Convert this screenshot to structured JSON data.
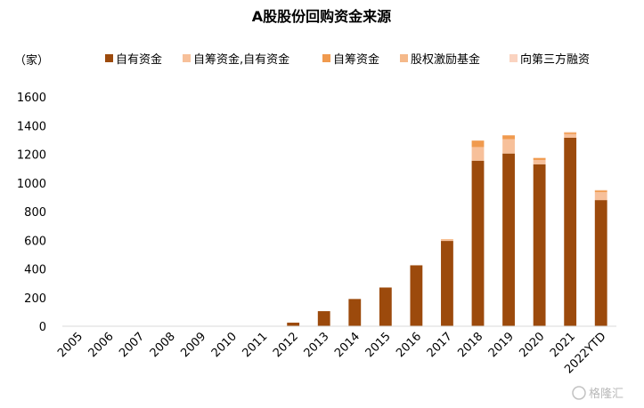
{
  "chart_data": {
    "type": "bar",
    "stacked": true,
    "title": "A股股份回购资金来源",
    "ylabel": "（家）",
    "xlabel": "",
    "ylim": [
      0,
      1600
    ],
    "yticks": [
      0,
      200,
      400,
      600,
      800,
      1000,
      1200,
      1400,
      1600
    ],
    "grid": false,
    "legend_position": "top",
    "categories": [
      "2005",
      "2006",
      "2007",
      "2008",
      "2009",
      "2010",
      "2011",
      "2012",
      "2013",
      "2014",
      "2015",
      "2016",
      "2017",
      "2018",
      "2019",
      "2020",
      "2021",
      "2022YTD"
    ],
    "series": [
      {
        "name": "自有资金",
        "color": "#9C4A0C",
        "values": [
          0,
          0,
          0,
          0,
          0,
          0,
          0,
          25,
          105,
          190,
          270,
          425,
          595,
          1155,
          1205,
          1130,
          1315,
          880
        ]
      },
      {
        "name": "自筹资金,自有资金",
        "color": "#F7C09A",
        "values": [
          0,
          0,
          0,
          0,
          0,
          0,
          0,
          0,
          0,
          0,
          0,
          0,
          8,
          95,
          100,
          30,
          25,
          55
        ]
      },
      {
        "name": "自筹资金",
        "color": "#F09A4E",
        "values": [
          0,
          0,
          0,
          0,
          0,
          0,
          0,
          0,
          0,
          0,
          0,
          0,
          2,
          45,
          25,
          12,
          10,
          10
        ]
      },
      {
        "name": "股权激励基金",
        "color": "#F5B98A",
        "values": [
          0,
          0,
          0,
          0,
          0,
          0,
          0,
          0,
          0,
          0,
          0,
          0,
          3,
          0,
          3,
          3,
          3,
          5
        ]
      },
      {
        "name": "向第三方融资",
        "color": "#FAD3C0",
        "values": [
          0,
          0,
          0,
          0,
          0,
          0,
          0,
          0,
          0,
          0,
          0,
          0,
          0,
          0,
          0,
          0,
          3,
          0
        ]
      }
    ]
  },
  "watermark": "格隆汇",
  "colors": {
    "axis": "#d9d9d9",
    "text": "#000000"
  }
}
